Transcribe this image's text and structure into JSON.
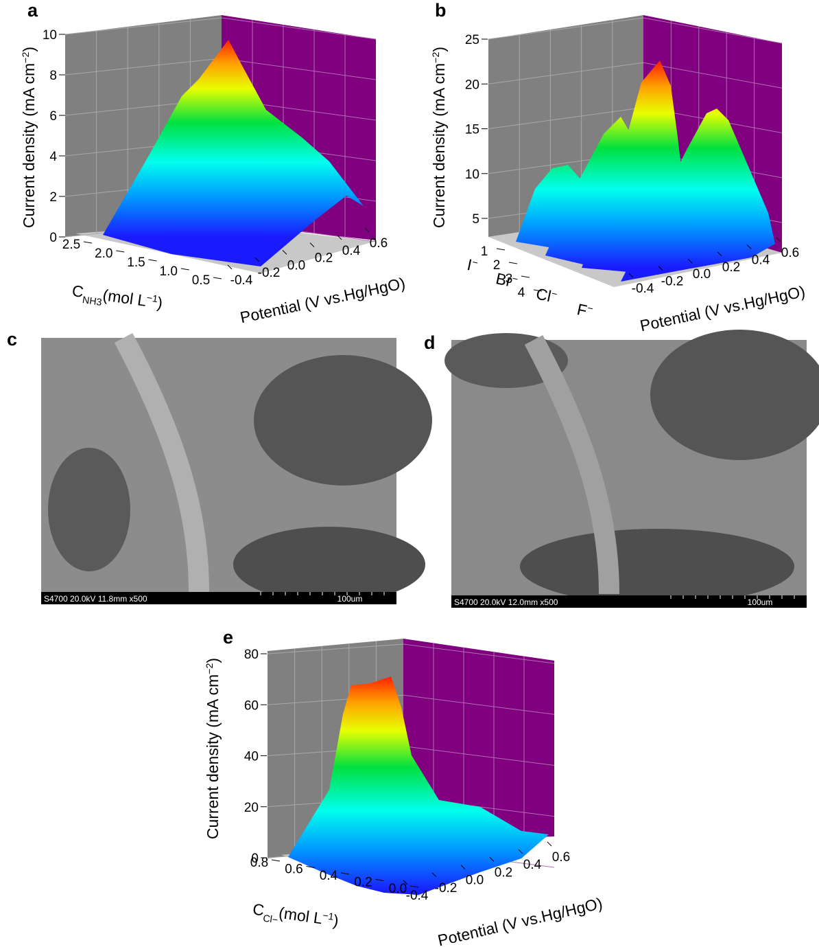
{
  "panels": [
    {
      "letter": "a",
      "z_label": {
        "main": "Current density (mA cm",
        "sup": "−2",
        "end": ")"
      },
      "z_ticks": [
        "0",
        "2",
        "4",
        "6",
        "8",
        "10"
      ],
      "c_label": {
        "main": "C",
        "sub": "NH3",
        "end": "(mol L",
        "sup": "−1",
        "close": ")"
      },
      "c_ticks": [
        "2.5",
        "2.0",
        "1.5",
        "1.0",
        "0.5"
      ],
      "p_label": "Potential (V vs.Hg/HgO)",
      "p_ticks": [
        "-0.4",
        "-0.2",
        "0.0",
        "0.2",
        "0.4",
        "0.6"
      ]
    },
    {
      "letter": "b",
      "z_label": {
        "main": "Current density (mA cm",
        "sup": "−2",
        "end": ")"
      },
      "z_ticks": [
        "5",
        "10",
        "15",
        "20",
        "25"
      ],
      "c_ticks": [
        "1",
        "2",
        "3",
        "4"
      ],
      "ions": [
        {
          "symbol": "I",
          "sup": "−"
        },
        {
          "symbol": "Br",
          "sup": "−"
        },
        {
          "symbol": "Cl",
          "sup": "−"
        },
        {
          "symbol": "F",
          "sup": "−"
        }
      ],
      "p_label": "Potential (V vs.Hg/HgO)",
      "p_ticks": [
        "-0.4",
        "-0.2",
        "0.0",
        "0.2",
        "0.4",
        "0.6"
      ]
    },
    {
      "letter": "e",
      "z_label": {
        "main": "Current density (mA cm",
        "sup": "−2",
        "end": ")"
      },
      "z_ticks": [
        "0",
        "20",
        "40",
        "60",
        "80"
      ],
      "c_label": {
        "main": "C",
        "sub": "Cl−",
        "end": "(mol L",
        "sup": "−1",
        "close": ")"
      },
      "c_ticks": [
        "0.8",
        "0.6",
        "0.4",
        "0.2",
        "0.0"
      ],
      "p_label": "Potential (V vs.Hg/HgO)",
      "p_ticks": [
        "-0.4",
        "-0.2",
        "0.0",
        "0.2",
        "0.4",
        "0.6"
      ]
    }
  ],
  "images": [
    {
      "letter": "c",
      "caption": "S4700 20.0kV 11.8mm x500",
      "scale": "100um"
    },
    {
      "letter": "d",
      "caption": "S4700 20.0kV 12.0mm x500",
      "scale": "100um"
    }
  ]
}
